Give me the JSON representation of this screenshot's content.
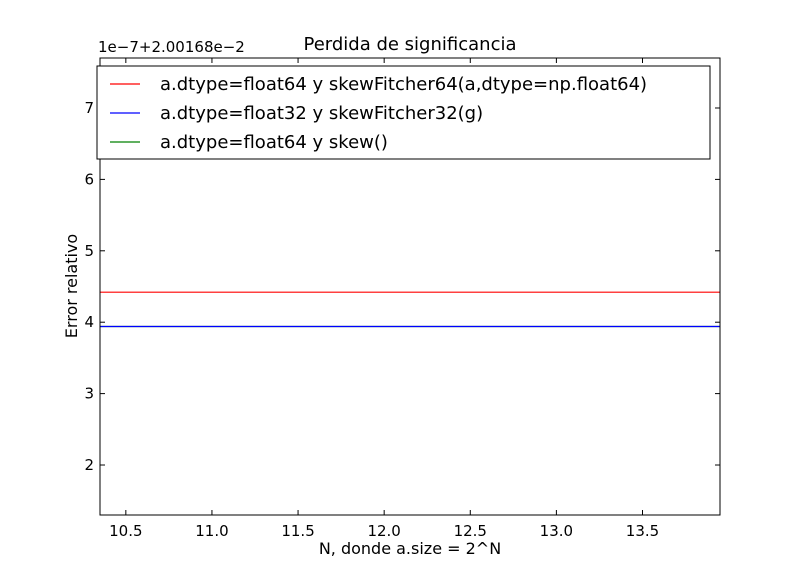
{
  "chart_data": {
    "type": "line",
    "title": "Perdida de significancia",
    "xlabel": "N, donde a.size = 2^N",
    "ylabel": "Error relativo",
    "offset_label": "1e−7+2.00168e−2",
    "xlim": [
      10.35,
      13.95
    ],
    "ylim": [
      1.3,
      7.7
    ],
    "x_ticks": [
      10.5,
      11.0,
      11.5,
      12.0,
      12.5,
      13.0,
      13.5
    ],
    "x_tick_labels": [
      "10.5",
      "11.0",
      "11.5",
      "12.0",
      "12.5",
      "13.0",
      "13.5"
    ],
    "y_ticks": [
      2,
      3,
      4,
      5,
      6,
      7
    ],
    "y_tick_labels": [
      "2",
      "3",
      "4",
      "5",
      "6",
      "7"
    ],
    "grid": false,
    "legend_position": "top",
    "series": [
      {
        "name": "a.dtype=float64 y skewFitcher64(a,dtype=np.float64)",
        "color": "#ff0000",
        "x": [
          10.35,
          13.95
        ],
        "y": [
          4.42,
          4.42
        ]
      },
      {
        "name": "a.dtype=float32 y skewFitcher32(g)",
        "color": "#0000ff",
        "x": [
          10.35,
          13.95
        ],
        "y": [
          3.94,
          3.94
        ]
      },
      {
        "name": "a.dtype=float64 y skew()",
        "color": "#008000",
        "x": [
          10.35,
          13.95
        ],
        "y": [
          3.94,
          3.94
        ]
      }
    ]
  }
}
